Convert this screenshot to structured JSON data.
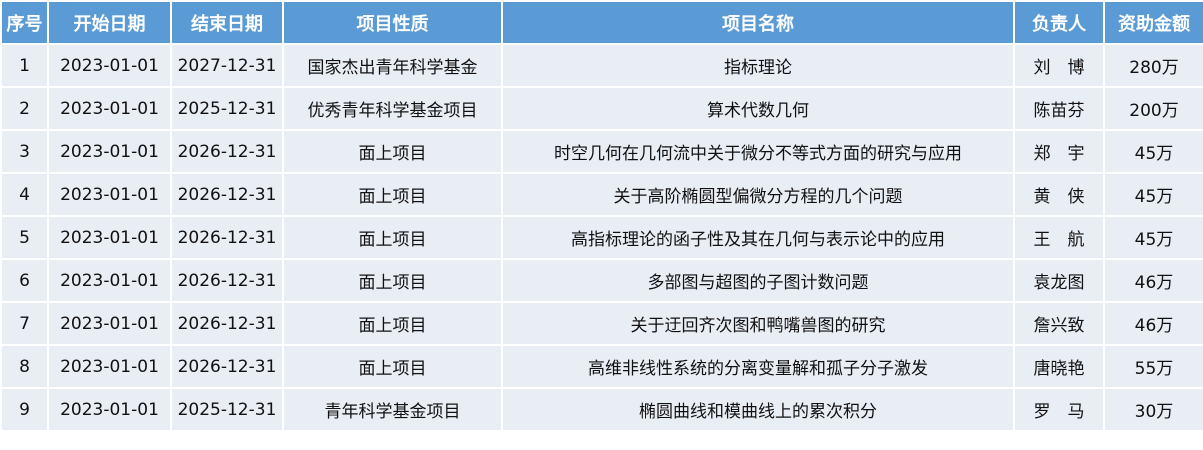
{
  "headers": [
    "序号",
    "开始日期",
    "结束日期",
    "项目性质",
    "项目名称",
    "负责人",
    "资助金额"
  ],
  "rows": [
    [
      "1",
      "2023-01-01",
      "2027-12-31",
      "国家杰出青年科学基金",
      "指标理论",
      "刘　博",
      "280万"
    ],
    [
      "2",
      "2023-01-01",
      "2025-12-31",
      "优秀青年科学基金项目",
      "算术代数几何",
      "陈苗芬",
      "200万"
    ],
    [
      "3",
      "2023-01-01",
      "2026-12-31",
      "面上项目",
      "时空几何在几何流中关于微分不等式方面的研究与应用",
      "郑　宇",
      "45万"
    ],
    [
      "4",
      "2023-01-01",
      "2026-12-31",
      "面上项目",
      "关于高阶椭圆型偏微分方程的几个问题",
      "黄　侠",
      "45万"
    ],
    [
      "5",
      "2023-01-01",
      "2026-12-31",
      "面上项目",
      "高指标理论的函子性及其在几何与表示论中的应用",
      "王　航",
      "45万"
    ],
    [
      "6",
      "2023-01-01",
      "2026-12-31",
      "面上项目",
      "多部图与超图的子图计数问题",
      "袁龙图",
      "46万"
    ],
    [
      "7",
      "2023-01-01",
      "2026-12-31",
      "面上项目",
      "关于迂回齐次图和鸭嘴兽图的研究",
      "詹兴致",
      "46万"
    ],
    [
      "8",
      "2023-01-01",
      "2026-12-31",
      "面上项目",
      "高维非线性系统的分离变量解和孤子分子激发",
      "唐晓艳",
      "55万"
    ],
    [
      "9",
      "2023-01-01",
      "2025-12-31",
      "青年科学基金项目",
      "椭圆曲线和模曲线上的累次积分",
      "罗　马",
      "30万"
    ]
  ],
  "colors": {
    "header_bg": "#5b9bd5",
    "row_bg": "#e9edf4"
  }
}
